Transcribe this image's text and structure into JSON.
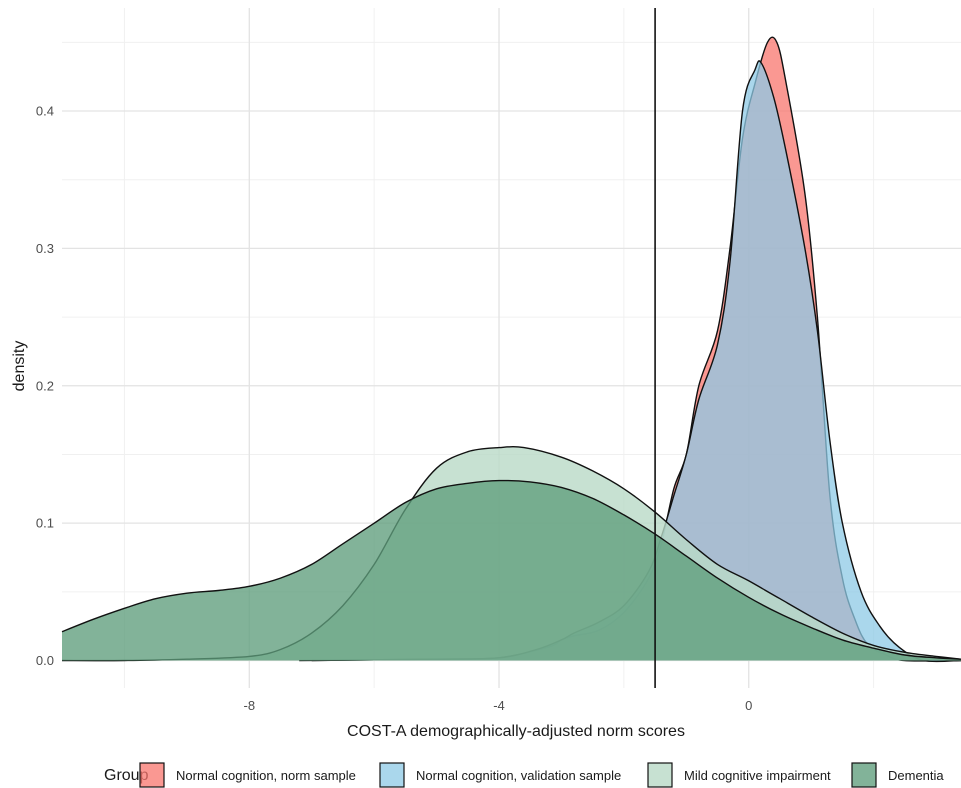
{
  "chart_data": {
    "type": "area",
    "subtype": "density",
    "title": "",
    "xlabel": "COST-A demographically-adjusted norm scores",
    "ylabel": "density",
    "xlim": [
      -11,
      3.4
    ],
    "ylim": [
      -0.02,
      0.475
    ],
    "x_ticks": [
      {
        "value": -8,
        "label": "-8"
      },
      {
        "value": -4,
        "label": "-4"
      },
      {
        "value": 0,
        "label": "0"
      }
    ],
    "y_ticks": [
      {
        "value": 0.0,
        "label": "0.0"
      },
      {
        "value": 0.1,
        "label": "0.1"
      },
      {
        "value": 0.2,
        "label": "0.2"
      },
      {
        "value": 0.3,
        "label": "0.3"
      },
      {
        "value": 0.4,
        "label": "0.4"
      }
    ],
    "grid": true,
    "vline": -1.5,
    "legend": {
      "title": "Group",
      "position": "bottom"
    },
    "series": [
      {
        "name": "Normal cognition, norm sample",
        "color": "#F8766D",
        "opacity": 0.75,
        "points": [
          [
            -7.2,
            0
          ],
          [
            -6,
            0.0005
          ],
          [
            -5,
            0.001
          ],
          [
            -4,
            0.002
          ],
          [
            -3.2,
            0.01
          ],
          [
            -3,
            0.015
          ],
          [
            -2.8,
            0.018
          ],
          [
            -2.4,
            0.022
          ],
          [
            -2,
            0.035
          ],
          [
            -1.6,
            0.06
          ],
          [
            -1.4,
            0.085
          ],
          [
            -1.2,
            0.125
          ],
          [
            -1,
            0.15
          ],
          [
            -0.8,
            0.2
          ],
          [
            -0.5,
            0.24
          ],
          [
            -0.3,
            0.3
          ],
          [
            -0.1,
            0.38
          ],
          [
            0.1,
            0.42
          ],
          [
            0.3,
            0.45
          ],
          [
            0.45,
            0.45
          ],
          [
            0.6,
            0.42
          ],
          [
            0.9,
            0.34
          ],
          [
            1.1,
            0.25
          ],
          [
            1.3,
            0.12
          ],
          [
            1.5,
            0.06
          ],
          [
            1.7,
            0.03
          ],
          [
            1.9,
            0.012
          ],
          [
            2.2,
            0.004
          ],
          [
            2.5,
            0
          ],
          [
            3.4,
            0
          ]
        ]
      },
      {
        "name": "Normal cognition, validation sample",
        "color": "#8ECAE6",
        "opacity": 0.75,
        "points": [
          [
            -7,
            0
          ],
          [
            -6,
            0.0005
          ],
          [
            -5,
            0.001
          ],
          [
            -4,
            0.002
          ],
          [
            -3.4,
            0.008
          ],
          [
            -3,
            0.015
          ],
          [
            -2.8,
            0.02
          ],
          [
            -2.4,
            0.028
          ],
          [
            -2,
            0.04
          ],
          [
            -1.6,
            0.065
          ],
          [
            -1.4,
            0.09
          ],
          [
            -1.2,
            0.12
          ],
          [
            -1,
            0.15
          ],
          [
            -0.8,
            0.19
          ],
          [
            -0.5,
            0.23
          ],
          [
            -0.3,
            0.29
          ],
          [
            -0.1,
            0.4
          ],
          [
            0.1,
            0.43
          ],
          [
            0.2,
            0.435
          ],
          [
            0.4,
            0.41
          ],
          [
            0.6,
            0.37
          ],
          [
            0.9,
            0.3
          ],
          [
            1.1,
            0.24
          ],
          [
            1.3,
            0.16
          ],
          [
            1.5,
            0.1
          ],
          [
            1.8,
            0.05
          ],
          [
            2.1,
            0.025
          ],
          [
            2.4,
            0.01
          ],
          [
            2.8,
            0
          ],
          [
            3.4,
            0
          ]
        ]
      },
      {
        "name": "Mild cognitive impairment",
        "color": "#B9DAC7",
        "opacity": 0.8,
        "points": [
          [
            -11,
            0
          ],
          [
            -10,
            0
          ],
          [
            -9,
            0.001
          ],
          [
            -8,
            0.003
          ],
          [
            -7.5,
            0.008
          ],
          [
            -7,
            0.02
          ],
          [
            -6.5,
            0.04
          ],
          [
            -6,
            0.07
          ],
          [
            -5.5,
            0.11
          ],
          [
            -5,
            0.14
          ],
          [
            -4.5,
            0.152
          ],
          [
            -4,
            0.155
          ],
          [
            -3.6,
            0.155
          ],
          [
            -3,
            0.148
          ],
          [
            -2.5,
            0.138
          ],
          [
            -2,
            0.125
          ],
          [
            -1.5,
            0.108
          ],
          [
            -1,
            0.088
          ],
          [
            -0.5,
            0.07
          ],
          [
            0,
            0.058
          ],
          [
            0.5,
            0.045
          ],
          [
            1,
            0.032
          ],
          [
            1.5,
            0.02
          ],
          [
            2,
            0.011
          ],
          [
            2.5,
            0.006
          ],
          [
            3,
            0.003
          ],
          [
            3.4,
            0.001
          ]
        ]
      },
      {
        "name": "Dementia",
        "color": "#5F9E7C",
        "opacity": 0.78,
        "points": [
          [
            -11,
            0.021
          ],
          [
            -10.5,
            0.03
          ],
          [
            -10,
            0.038
          ],
          [
            -9.5,
            0.045
          ],
          [
            -9,
            0.049
          ],
          [
            -8.5,
            0.051
          ],
          [
            -8,
            0.054
          ],
          [
            -7.5,
            0.06
          ],
          [
            -7,
            0.07
          ],
          [
            -6.5,
            0.085
          ],
          [
            -6,
            0.1
          ],
          [
            -5.5,
            0.115
          ],
          [
            -5,
            0.125
          ],
          [
            -4.5,
            0.129
          ],
          [
            -4,
            0.131
          ],
          [
            -3.5,
            0.13
          ],
          [
            -3,
            0.126
          ],
          [
            -2.5,
            0.118
          ],
          [
            -2,
            0.106
          ],
          [
            -1.5,
            0.092
          ],
          [
            -1,
            0.076
          ],
          [
            -0.5,
            0.06
          ],
          [
            0,
            0.046
          ],
          [
            0.5,
            0.034
          ],
          [
            1,
            0.024
          ],
          [
            1.5,
            0.015
          ],
          [
            2,
            0.009
          ],
          [
            2.5,
            0.004
          ],
          [
            3,
            0.002
          ],
          [
            3.4,
            0.001
          ]
        ]
      }
    ]
  }
}
